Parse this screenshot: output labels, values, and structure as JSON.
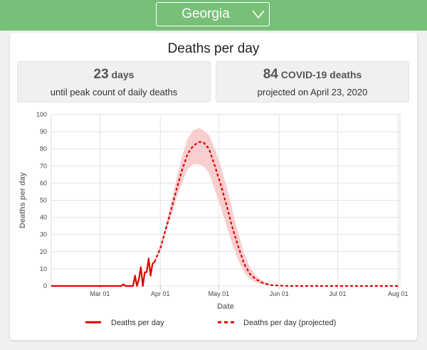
{
  "header": {
    "state_selected": "Georgia"
  },
  "card": {
    "title": "Deaths per day"
  },
  "stats": [
    {
      "number": "23",
      "unit": "days",
      "description": "until peak count of daily deaths"
    },
    {
      "number": "84",
      "unit": "COVID-19 deaths",
      "description": "projected on April 23, 2020"
    }
  ],
  "colors": {
    "accent": "#78c078",
    "series": "#e00000",
    "band": "#f7c6c6"
  },
  "chart_data": {
    "type": "line",
    "xlabel": "Date",
    "ylabel": "Deaths per day",
    "ylim": [
      0,
      100
    ],
    "yticks": [
      0,
      10,
      20,
      30,
      40,
      50,
      60,
      70,
      80,
      90,
      100
    ],
    "xlim": [
      "2020-02-05",
      "2020-08-02"
    ],
    "xticks": [
      {
        "date": "2020-03-01",
        "label": "Mar 01"
      },
      {
        "date": "2020-04-01",
        "label": "Apr 01"
      },
      {
        "date": "2020-05-01",
        "label": "May 01"
      },
      {
        "date": "2020-06-01",
        "label": "Jun 01"
      },
      {
        "date": "2020-07-01",
        "label": "Jul 01"
      },
      {
        "date": "2020-08-01",
        "label": "Aug 01"
      }
    ],
    "legend_position": "bottom",
    "grid": true,
    "series": [
      {
        "name": "Deaths per day",
        "style": "solid",
        "points": [
          [
            "2020-02-05",
            0
          ],
          [
            "2020-03-10",
            0
          ],
          [
            "2020-03-12",
            0
          ],
          [
            "2020-03-13",
            1
          ],
          [
            "2020-03-14",
            0
          ],
          [
            "2020-03-18",
            0
          ],
          [
            "2020-03-19",
            6
          ],
          [
            "2020-03-20",
            0
          ],
          [
            "2020-03-21",
            4
          ],
          [
            "2020-03-22",
            11
          ],
          [
            "2020-03-23",
            0
          ],
          [
            "2020-03-24",
            8
          ],
          [
            "2020-03-25",
            8
          ],
          [
            "2020-03-26",
            16
          ],
          [
            "2020-03-27",
            6
          ],
          [
            "2020-03-28",
            13
          ],
          [
            "2020-03-29",
            14
          ]
        ]
      },
      {
        "name": "Deaths per day (projected)",
        "style": "dashed",
        "points": [
          [
            "2020-03-29",
            14
          ],
          [
            "2020-04-01",
            22
          ],
          [
            "2020-04-03",
            30
          ],
          [
            "2020-04-06",
            42
          ],
          [
            "2020-04-09",
            55
          ],
          [
            "2020-04-12",
            67
          ],
          [
            "2020-04-15",
            77
          ],
          [
            "2020-04-18",
            82
          ],
          [
            "2020-04-21",
            84
          ],
          [
            "2020-04-23",
            84
          ],
          [
            "2020-04-26",
            80
          ],
          [
            "2020-04-29",
            70
          ],
          [
            "2020-05-02",
            59
          ],
          [
            "2020-05-05",
            47
          ],
          [
            "2020-05-08",
            34
          ],
          [
            "2020-05-11",
            23
          ],
          [
            "2020-05-14",
            13
          ],
          [
            "2020-05-17",
            7
          ],
          [
            "2020-05-20",
            4
          ],
          [
            "2020-05-24",
            1.5
          ],
          [
            "2020-05-28",
            0.5
          ],
          [
            "2020-06-05",
            0
          ],
          [
            "2020-08-02",
            0
          ]
        ]
      }
    ],
    "band": {
      "upper": [
        [
          "2020-03-29",
          15
        ],
        [
          "2020-04-01",
          24
        ],
        [
          "2020-04-03",
          32
        ],
        [
          "2020-04-06",
          46
        ],
        [
          "2020-04-09",
          61
        ],
        [
          "2020-04-12",
          75
        ],
        [
          "2020-04-15",
          86
        ],
        [
          "2020-04-18",
          91
        ],
        [
          "2020-04-21",
          92
        ],
        [
          "2020-04-23",
          91
        ],
        [
          "2020-04-26",
          88
        ],
        [
          "2020-04-29",
          80
        ],
        [
          "2020-05-02",
          70
        ],
        [
          "2020-05-05",
          58
        ],
        [
          "2020-05-08",
          44
        ],
        [
          "2020-05-11",
          31
        ],
        [
          "2020-05-14",
          19
        ],
        [
          "2020-05-17",
          11
        ],
        [
          "2020-05-20",
          6
        ],
        [
          "2020-05-24",
          2.5
        ],
        [
          "2020-05-28",
          1
        ],
        [
          "2020-06-05",
          0
        ]
      ],
      "lower": [
        [
          "2020-03-29",
          13
        ],
        [
          "2020-04-01",
          20
        ],
        [
          "2020-04-03",
          28
        ],
        [
          "2020-04-06",
          39
        ],
        [
          "2020-04-09",
          50
        ],
        [
          "2020-04-12",
          60
        ],
        [
          "2020-04-15",
          68
        ],
        [
          "2020-04-18",
          71
        ],
        [
          "2020-04-21",
          71
        ],
        [
          "2020-04-23",
          70
        ],
        [
          "2020-04-26",
          66
        ],
        [
          "2020-04-29",
          56
        ],
        [
          "2020-05-02",
          46
        ],
        [
          "2020-05-05",
          35
        ],
        [
          "2020-05-08",
          24
        ],
        [
          "2020-05-11",
          15
        ],
        [
          "2020-05-14",
          8
        ],
        [
          "2020-05-17",
          4
        ],
        [
          "2020-05-20",
          2
        ],
        [
          "2020-05-24",
          0.8
        ],
        [
          "2020-05-28",
          0.2
        ],
        [
          "2020-06-05",
          0
        ]
      ]
    }
  }
}
